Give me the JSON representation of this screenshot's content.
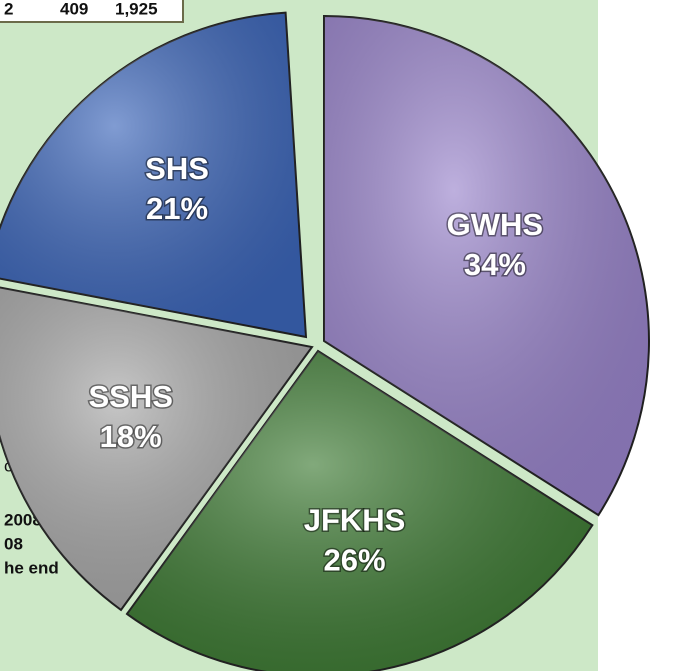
{
  "table_fragment": [
    "2",
    "409",
    "1,925"
  ],
  "side_text": [
    "on",
    "2008.",
    "08",
    "he end"
  ],
  "chart_data": {
    "type": "pie",
    "categories": [
      "GWHS",
      "JFKHS",
      "SSHS",
      "SHS"
    ],
    "values": [
      34,
      26,
      18,
      21
    ],
    "value_labels": [
      "34%",
      "26%",
      "18%",
      "21%"
    ],
    "colors": [
      "#9a85cc",
      "#3e7b34",
      "#a9a9a9",
      "#3c66ba"
    ]
  }
}
